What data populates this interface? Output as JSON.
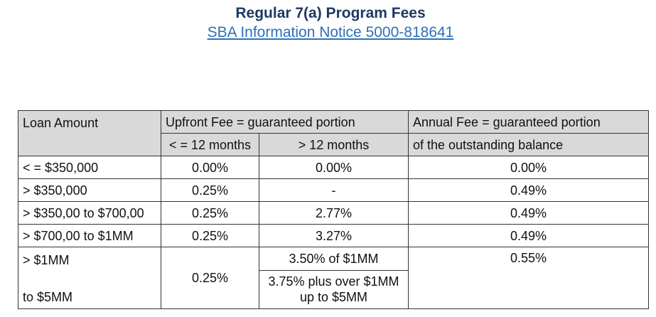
{
  "title": "Regular 7(a) Program Fees",
  "notice_link": "SBA Information Notice 5000-818641",
  "table": {
    "headers": {
      "loan_amount": "Loan Amount",
      "upfront": "Upfront Fee = guaranteed portion",
      "upfront_sub1": "< = 12 months",
      "upfront_sub2": "> 12 months",
      "annual_line1": "Annual Fee = guaranteed portion",
      "annual_line2": "of the outstanding balance"
    },
    "rows": [
      {
        "amount": "< = $350,000",
        "short": "0.00%",
        "long": "0.00%",
        "annual": "0.00%"
      },
      {
        "amount": "> $350,000",
        "short": "0.25%",
        "long": "-",
        "annual": "0.49%"
      },
      {
        "amount": "> $350,00 to $700,00",
        "short": "0.25%",
        "long": "2.77%",
        "annual": "0.49%"
      },
      {
        "amount": "> $700,00 to $1MM",
        "short": "0.25%",
        "long": "3.27%",
        "annual": "0.49%"
      }
    ],
    "last_row": {
      "amount_line1": "> $1MM",
      "amount_line2": "to $5MM",
      "short": "0.25%",
      "long_part1": "3.50%  of $1MM",
      "long_part2_line1": "3.75% plus over $1MM",
      "long_part2_line2": "up to $5MM",
      "annual": "0.55%"
    }
  }
}
